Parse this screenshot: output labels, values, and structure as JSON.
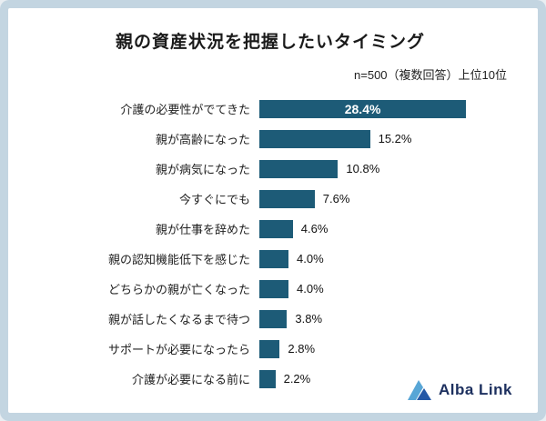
{
  "page": {
    "title": "親の資産状況を把握したいタイミング",
    "subtitle": "n=500（複数回答）上位10位"
  },
  "chart_data": {
    "type": "bar",
    "orientation": "horizontal",
    "title": "親の資産状況を把握したいタイミング",
    "note": "n=500（複数回答）上位10位",
    "categories": [
      "介護の必要性がでてきた",
      "親が高齢になった",
      "親が病気になった",
      "今すぐにでも",
      "親が仕事を辞めた",
      "親の認知機能低下を感じた",
      "どちらかの親が亡くなった",
      "親が話したくなるまで待つ",
      "サポートが必要になったら",
      "介護が必要になる前に"
    ],
    "values": [
      28.4,
      15.2,
      10.8,
      7.6,
      4.6,
      4.0,
      4.0,
      3.8,
      2.8,
      2.2
    ],
    "value_labels": [
      "28.4%",
      "15.2%",
      "10.8%",
      "7.6%",
      "4.6%",
      "4.0%",
      "4.0%",
      "3.8%",
      "2.8%",
      "2.2%"
    ],
    "xlim": [
      0,
      30
    ],
    "bar_color": "#1d5b77",
    "grid": false,
    "legend": false,
    "first_label_inside": true
  },
  "logo": {
    "text": "Alba Link",
    "icon": "alba-link-triangle-icon",
    "icon_color_light": "#58a6d6",
    "icon_color_dark": "#2458a6"
  },
  "colors": {
    "frame": "#c3d5e1",
    "card_bg": "#ffffff",
    "bar": "#1d5b77",
    "inside_label": "#ffffff",
    "outside_label": "#111111",
    "logo_text": "#1c2f5e"
  }
}
